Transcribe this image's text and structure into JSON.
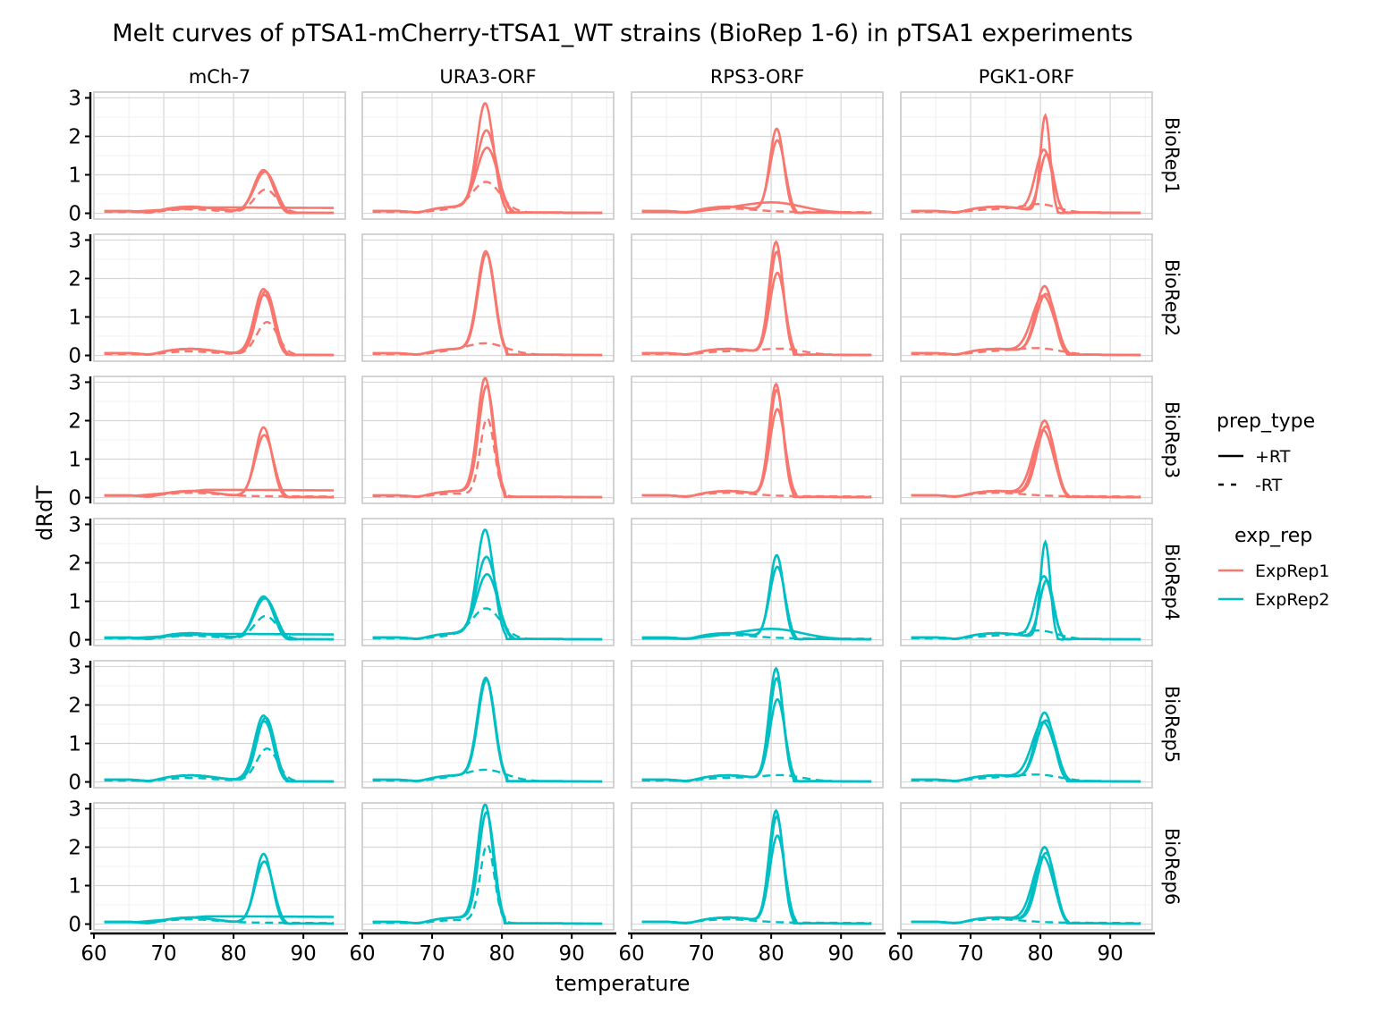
{
  "chart_data": {
    "type": "line",
    "title": "Melt curves of pTSA1-mCherry-tTSA1_WT strains (BioRep 1-6) in pTSA1 experiments",
    "xlabel": "temperature",
    "ylabel": "dRdT",
    "xlim": [
      60,
      96
    ],
    "ylim": [
      -0.15,
      3.15
    ],
    "xticks": [
      "60",
      "70",
      "80",
      "90"
    ],
    "yticks": [
      "0",
      "1",
      "2",
      "3"
    ],
    "grid": true,
    "facet_cols": [
      "mCh-7",
      "URA3-ORF",
      "RPS3-ORF",
      "PGK1-ORF"
    ],
    "facet_rows": [
      "BioRep1",
      "BioRep2",
      "BioRep3",
      "BioRep4",
      "BioRep5",
      "BioRep6"
    ],
    "row_exp_rep": [
      "ExpRep1",
      "ExpRep1",
      "ExpRep1",
      "ExpRep2",
      "ExpRep2",
      "ExpRep2"
    ],
    "legend": {
      "placement": "right",
      "prep_type_title": "prep_type",
      "prep_type_items": [
        "+RT",
        "-RT"
      ],
      "exp_rep_title": "exp_rep",
      "exp_rep_items": [
        {
          "name": "ExpRep1",
          "color": "#F8766D"
        },
        {
          "name": "ExpRep2",
          "color": "#00BFC4"
        }
      ]
    },
    "panels": {
      "mCh-7": {
        "BioRep1": {
          "+RT_peaks": [
            [
              84.3,
              1.1,
              1.4
            ],
            [
              84.5,
              1.05,
              1.5
            ]
          ],
          "+RT_flat": 0.15,
          "-RT_peak": [
            84.6,
            0.6,
            1.6
          ]
        },
        "BioRep2": {
          "+RT_peaks": [
            [
              84.3,
              1.7,
              1.3
            ],
            [
              84.4,
              1.55,
              1.4
            ],
            [
              84.6,
              1.65,
              1.3
            ]
          ],
          "-RT_peak": [
            84.8,
            0.85,
            1.5
          ]
        },
        "BioRep3": {
          "+RT_peaks": [
            [
              84.3,
              1.8,
              1.2
            ],
            [
              84.4,
              1.6,
              1.3
            ]
          ],
          "+RT_flat": 0.2,
          "-RT_peak": null
        },
        "BioRep4": {
          "+RT_peaks": [
            [
              84.3,
              1.1,
              1.4
            ],
            [
              84.5,
              1.05,
              1.5
            ]
          ],
          "+RT_flat": 0.15,
          "-RT_peak": [
            84.6,
            0.6,
            1.6
          ]
        },
        "BioRep5": {
          "+RT_peaks": [
            [
              84.3,
              1.7,
              1.3
            ],
            [
              84.4,
              1.55,
              1.4
            ],
            [
              84.6,
              1.65,
              1.3
            ]
          ],
          "-RT_peak": [
            84.8,
            0.85,
            1.5
          ]
        },
        "BioRep6": {
          "+RT_peaks": [
            [
              84.3,
              1.8,
              1.2
            ],
            [
              84.4,
              1.6,
              1.3
            ]
          ],
          "+RT_flat": 0.2,
          "-RT_peak": null
        }
      },
      "URA3-ORF": {
        "BioRep1": {
          "+RT_peaks": [
            [
              77.6,
              2.75,
              1.2
            ],
            [
              77.8,
              2.05,
              1.4
            ],
            [
              77.9,
              1.6,
              1.5
            ]
          ],
          "-RT_peak": [
            77.8,
            0.75,
            2.0
          ]
        },
        "BioRep2": {
          "+RT_peaks": [
            [
              77.7,
              2.6,
              1.2
            ],
            [
              77.8,
              2.55,
              1.2
            ]
          ],
          "-RT_peak": [
            78.0,
            0.25,
            2.8
          ]
        },
        "BioRep3": {
          "+RT_peaks": [
            [
              77.6,
              3.0,
              1.1
            ],
            [
              77.8,
              2.8,
              1.1
            ]
          ],
          "-RT_peak": [
            77.9,
            2.0,
            1.0
          ]
        },
        "BioRep4": {
          "+RT_peaks": [
            [
              77.6,
              2.75,
              1.2
            ],
            [
              77.8,
              2.05,
              1.4
            ],
            [
              77.9,
              1.6,
              1.5
            ]
          ],
          "-RT_peak": [
            77.8,
            0.75,
            2.0
          ]
        },
        "BioRep5": {
          "+RT_peaks": [
            [
              77.7,
              2.6,
              1.2
            ],
            [
              77.8,
              2.55,
              1.2
            ]
          ],
          "-RT_peak": [
            78.0,
            0.25,
            2.8
          ]
        },
        "BioRep6": {
          "+RT_peaks": [
            [
              77.6,
              3.0,
              1.1
            ],
            [
              77.8,
              2.8,
              1.1
            ]
          ],
          "-RT_peak": [
            77.9,
            2.0,
            1.0
          ]
        }
      },
      "RPS3-ORF": {
        "BioRep1": {
          "+RT_peaks": [
            [
              80.8,
              2.15,
              1.0
            ],
            [
              80.9,
              1.85,
              1.1
            ]
          ],
          "+RT_broad": [
            80.5,
            0.25,
            4.0
          ],
          "-RT_peak": null
        },
        "BioRep2": {
          "+RT_peaks": [
            [
              80.7,
              2.9,
              1.0
            ],
            [
              80.8,
              2.65,
              1.0
            ],
            [
              80.9,
              2.1,
              1.1
            ]
          ],
          "-RT_peak": [
            81.5,
            0.15,
            3.0
          ]
        },
        "BioRep3": {
          "+RT_peaks": [
            [
              80.7,
              2.9,
              1.0
            ],
            [
              80.8,
              2.75,
              1.0
            ],
            [
              80.9,
              2.25,
              1.1
            ]
          ],
          "-RT_peak": null
        },
        "BioRep4": {
          "+RT_peaks": [
            [
              80.8,
              2.15,
              1.0
            ],
            [
              80.9,
              1.85,
              1.1
            ]
          ],
          "+RT_broad": [
            80.5,
            0.25,
            4.0
          ],
          "-RT_peak": null
        },
        "BioRep5": {
          "+RT_peaks": [
            [
              80.7,
              2.9,
              1.0
            ],
            [
              80.8,
              2.65,
              1.0
            ],
            [
              80.9,
              2.1,
              1.1
            ]
          ],
          "-RT_peak": [
            81.5,
            0.15,
            3.0
          ]
        },
        "BioRep6": {
          "+RT_peaks": [
            [
              80.7,
              2.9,
              1.0
            ],
            [
              80.8,
              2.75,
              1.0
            ],
            [
              80.9,
              2.25,
              1.1
            ]
          ],
          "-RT_peak": null
        }
      },
      "PGK1-ORF": {
        "BioRep1": {
          "+RT_peaks": [
            [
              80.7,
              2.5,
              0.7
            ],
            [
              80.5,
              1.6,
              1.2
            ],
            [
              80.9,
              1.5,
              1.0
            ]
          ],
          "-RT_peak": [
            80.0,
            0.2,
            2.5
          ]
        },
        "BioRep2": {
          "+RT_peaks": [
            [
              80.6,
              1.75,
              1.3
            ],
            [
              80.4,
              1.5,
              1.6
            ],
            [
              80.8,
              1.55,
              1.4
            ]
          ],
          "-RT_peak": [
            80.0,
            0.15,
            3.0
          ]
        },
        "BioRep3": {
          "+RT_peaks": [
            [
              80.6,
              1.95,
              1.3
            ],
            [
              80.4,
              1.7,
              1.5
            ],
            [
              80.8,
              1.8,
              1.3
            ]
          ],
          "-RT_peak": null
        },
        "BioRep4": {
          "+RT_peaks": [
            [
              80.7,
              2.5,
              0.7
            ],
            [
              80.5,
              1.6,
              1.2
            ],
            [
              80.9,
              1.5,
              1.0
            ]
          ],
          "-RT_peak": [
            80.0,
            0.2,
            2.5
          ]
        },
        "BioRep5": {
          "+RT_peaks": [
            [
              80.6,
              1.75,
              1.3
            ],
            [
              80.4,
              1.5,
              1.6
            ],
            [
              80.8,
              1.55,
              1.4
            ]
          ],
          "-RT_peak": [
            80.0,
            0.15,
            3.0
          ]
        },
        "BioRep6": {
          "+RT_peaks": [
            [
              80.6,
              1.95,
              1.3
            ],
            [
              80.4,
              1.7,
              1.5
            ],
            [
              80.8,
              1.8,
              1.3
            ]
          ],
          "-RT_peak": null
        }
      }
    }
  }
}
